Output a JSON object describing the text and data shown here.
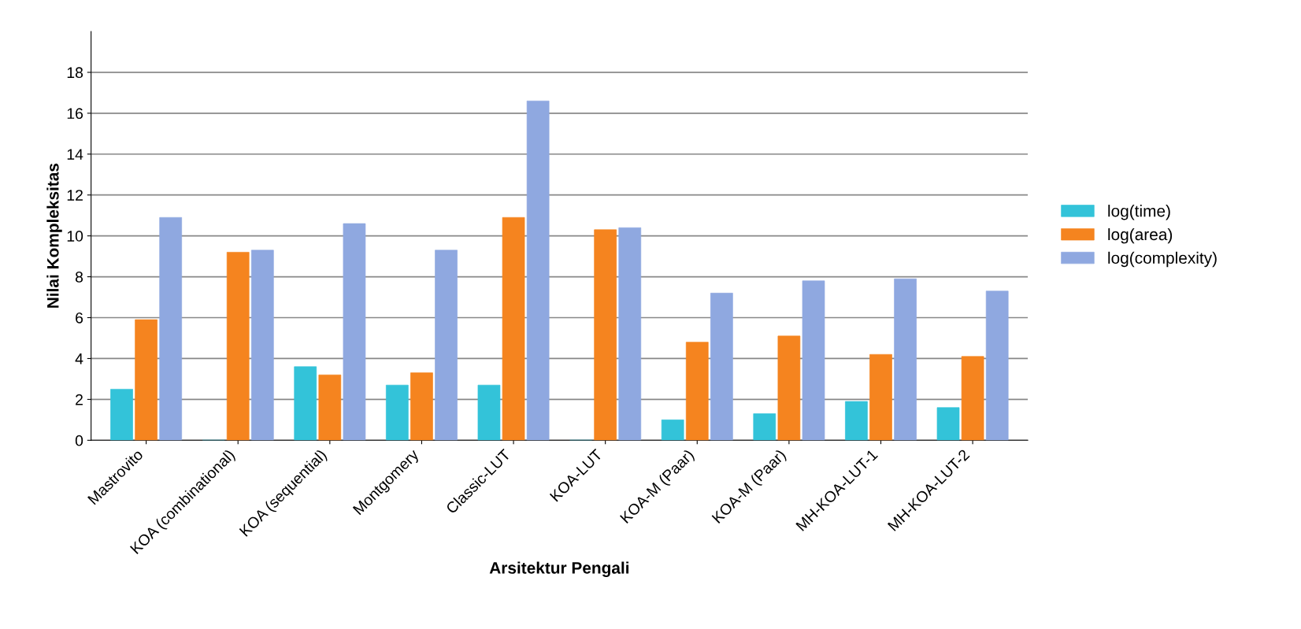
{
  "chart_data": {
    "type": "bar",
    "xlabel": "Arsitektur Pengali",
    "ylabel": "Nilai Kompleksitas",
    "categories": [
      "Mastrovito",
      "KOA (combinational)",
      "KOA (sequential)",
      "Montgomery",
      "Classic-LUT",
      "KOA-LUT",
      "KOA-M (Paar)",
      "KOA-M (Paar)",
      "MH-KOA-LUT-1",
      "MH-KOA-LUT-2"
    ],
    "series": [
      {
        "name": "log(time)",
        "color": "#33c3d9",
        "values": [
          2.5,
          0,
          3.6,
          2.7,
          2.7,
          0,
          1.0,
          1.3,
          1.9,
          1.6
        ]
      },
      {
        "name": "log(area)",
        "color": "#f5841f",
        "values": [
          5.9,
          9.2,
          3.2,
          3.3,
          10.9,
          10.3,
          4.8,
          5.1,
          4.2,
          4.1
        ]
      },
      {
        "name": "log(complexity)",
        "color": "#8fa8e0",
        "values": [
          10.9,
          9.3,
          10.6,
          9.3,
          16.6,
          10.4,
          7.2,
          7.8,
          7.9,
          7.3
        ]
      }
    ],
    "ylim": [
      0,
      20
    ],
    "yticks": [
      0,
      2,
      4,
      6,
      8,
      10,
      12,
      14,
      16,
      18
    ],
    "grid": "y",
    "legend": "right"
  }
}
